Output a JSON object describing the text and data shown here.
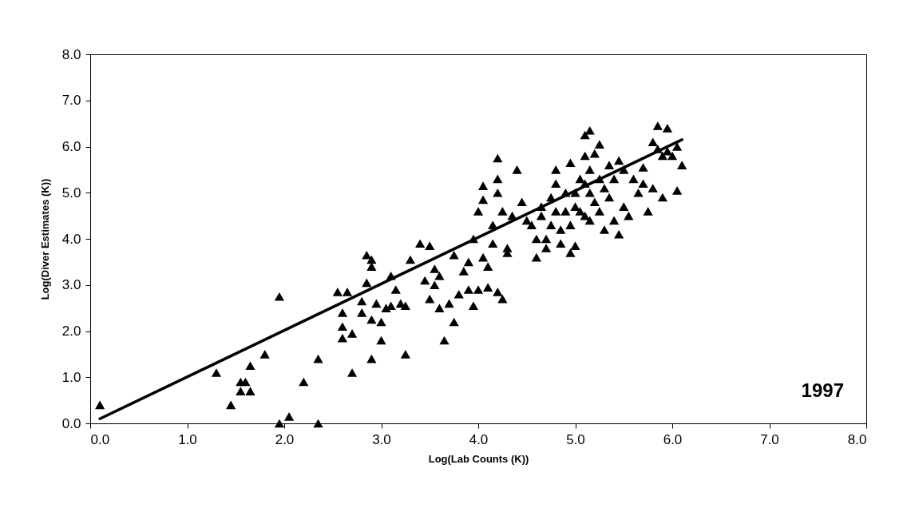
{
  "chart_data": {
    "type": "scatter",
    "xlabel": "Log(Lab Counts (K))",
    "ylabel": "Log(Diver Estimates (K))",
    "xlim": [
      0,
      8
    ],
    "ylim": [
      0,
      8
    ],
    "xticks": [
      {
        "value": 0,
        "label": "0.0"
      },
      {
        "value": 1,
        "label": "1.0"
      },
      {
        "value": 2,
        "label": "2.0"
      },
      {
        "value": 3,
        "label": "3.0"
      },
      {
        "value": 4,
        "label": "4.0"
      },
      {
        "value": 5,
        "label": "5.0"
      },
      {
        "value": 6,
        "label": "6.0"
      },
      {
        "value": 7,
        "label": "7.0"
      },
      {
        "value": 8,
        "label": "8.0"
      }
    ],
    "yticks": [
      {
        "value": 0,
        "label": "0.0"
      },
      {
        "value": 1,
        "label": "1.0"
      },
      {
        "value": 2,
        "label": "2.0"
      },
      {
        "value": 3,
        "label": "3.0"
      },
      {
        "value": 4,
        "label": "4.0"
      },
      {
        "value": 5,
        "label": "5.0"
      },
      {
        "value": 6,
        "label": "6.0"
      },
      {
        "value": 7,
        "label": "7.0"
      },
      {
        "value": 8,
        "label": "8.0"
      }
    ],
    "grid": false,
    "marker": "triangle",
    "annotations": [
      "1997"
    ],
    "series": [
      {
        "color": "#000000",
        "x": [
          0.1,
          1.3,
          1.45,
          1.55,
          1.6,
          1.55,
          1.65,
          1.65,
          1.8,
          1.95,
          1.95,
          2.05,
          2.2,
          2.35,
          2.35,
          2.55,
          2.6,
          2.6,
          2.6,
          2.65,
          2.7,
          2.7,
          2.8,
          2.8,
          2.85,
          2.85,
          2.9,
          2.9,
          2.9,
          2.9,
          2.95,
          3.0,
          3.0,
          3.05,
          3.1,
          3.1,
          3.15,
          3.2,
          3.25,
          3.25,
          3.3,
          3.4,
          3.45,
          3.5,
          3.5,
          3.55,
          3.55,
          3.6,
          3.6,
          3.65,
          3.7,
          3.75,
          3.75,
          3.8,
          3.85,
          3.9,
          3.9,
          3.95,
          3.95,
          4.0,
          4.0,
          4.05,
          4.05,
          4.05,
          4.1,
          4.1,
          4.15,
          4.15,
          4.2,
          4.2,
          4.2,
          4.2,
          4.25,
          4.25,
          4.3,
          4.3,
          4.35,
          4.4,
          4.45,
          4.5,
          4.55,
          4.6,
          4.6,
          4.65,
          4.65,
          4.7,
          4.7,
          4.75,
          4.75,
          4.8,
          4.8,
          4.8,
          4.85,
          4.85,
          4.9,
          4.9,
          4.95,
          4.95,
          4.95,
          5.0,
          5.0,
          5.0,
          5.05,
          5.05,
          5.1,
          5.1,
          5.1,
          5.1,
          5.15,
          5.15,
          5.15,
          5.15,
          5.2,
          5.2,
          5.25,
          5.25,
          5.25,
          5.3,
          5.3,
          5.35,
          5.35,
          5.4,
          5.4,
          5.45,
          5.45,
          5.5,
          5.5,
          5.55,
          5.6,
          5.65,
          5.7,
          5.7,
          5.75,
          5.8,
          5.8,
          5.85,
          5.85,
          5.9,
          5.9,
          5.95,
          5.95,
          6.0,
          6.05,
          6.1,
          6.05
        ],
        "values": [
          0.4,
          1.1,
          0.4,
          0.9,
          0.9,
          0.7,
          0.7,
          1.25,
          1.5,
          2.75,
          0.0,
          0.15,
          0.9,
          1.4,
          0.0,
          2.85,
          2.4,
          2.1,
          1.85,
          2.85,
          1.1,
          1.95,
          2.65,
          2.4,
          3.05,
          3.65,
          3.55,
          3.4,
          2.25,
          1.4,
          2.6,
          1.8,
          2.2,
          2.5,
          3.2,
          2.55,
          2.9,
          2.6,
          2.55,
          1.5,
          3.55,
          3.9,
          3.1,
          3.85,
          2.7,
          3.35,
          3.0,
          3.2,
          2.5,
          1.8,
          2.6,
          2.2,
          3.65,
          2.8,
          3.3,
          3.5,
          2.9,
          4.0,
          2.55,
          4.6,
          2.9,
          4.85,
          5.15,
          3.6,
          3.4,
          2.95,
          4.3,
          3.9,
          5.75,
          5.3,
          5.0,
          2.85,
          2.7,
          4.6,
          3.8,
          3.7,
          4.5,
          5.5,
          4.8,
          4.4,
          4.3,
          3.6,
          4.0,
          4.7,
          4.5,
          4.0,
          3.8,
          4.9,
          4.3,
          5.5,
          5.2,
          4.6,
          4.2,
          3.9,
          5.0,
          4.6,
          5.65,
          4.3,
          3.7,
          5.0,
          4.7,
          3.85,
          5.3,
          4.6,
          6.25,
          5.8,
          5.2,
          4.5,
          6.35,
          5.5,
          5.0,
          4.4,
          5.85,
          4.8,
          6.05,
          5.3,
          4.6,
          5.1,
          4.2,
          5.6,
          4.9,
          5.3,
          4.4,
          5.7,
          4.1,
          5.5,
          4.7,
          4.5,
          5.3,
          5.0,
          5.55,
          5.2,
          4.6,
          6.1,
          5.1,
          6.45,
          5.95,
          5.8,
          4.9,
          6.4,
          5.9,
          5.8,
          5.05,
          5.6,
          6.0
        ]
      },
      {
        "type": "line",
        "color": "#000000",
        "marker": "none",
        "x": [
          0.1,
          6.1
        ],
        "values": [
          0.1,
          6.15
        ]
      }
    ]
  }
}
